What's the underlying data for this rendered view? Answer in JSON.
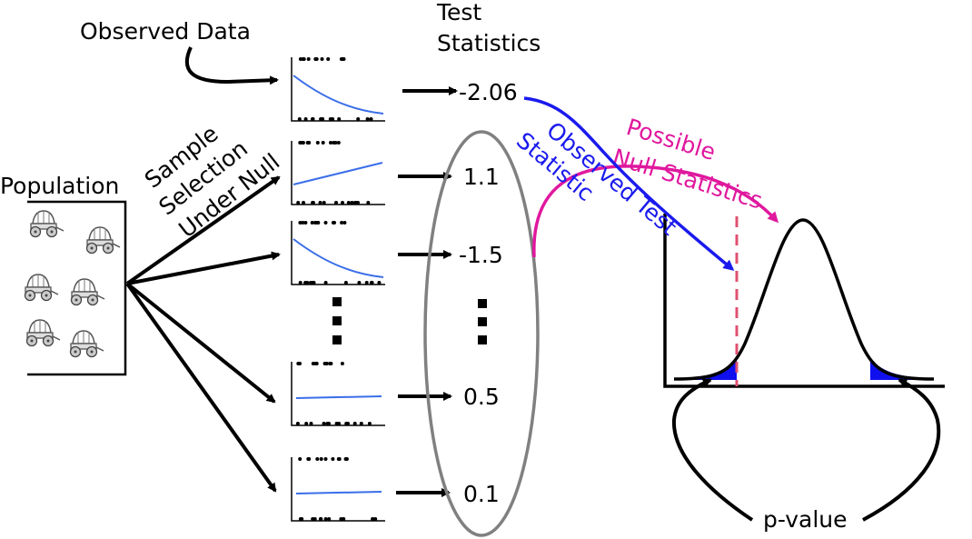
{
  "labels": {
    "observed_data": "Observed Data",
    "test_statistics_line1": "Test",
    "test_statistics_line2": "Statistics",
    "population": "Population",
    "sample_selection_line1": "Sample",
    "sample_selection_line2": "Selection",
    "sample_selection_line3": "Under Null",
    "observed_test_statistic_line1": "Observed Test",
    "observed_test_statistic_line2": "Statistic",
    "possible_null_statistics_line1": "Possible",
    "possible_null_statistics_line2": "Null Statistics",
    "p_value": "p-value"
  },
  "statistics": [
    {
      "value": "-2.06",
      "trend": "down",
      "observed": true
    },
    {
      "value": "1.1",
      "trend": "up",
      "observed": false
    },
    {
      "value": "-1.5",
      "trend": "down",
      "observed": false
    },
    {
      "value": "0.5",
      "trend": "flat",
      "observed": false
    },
    {
      "value": "0.1",
      "trend": "flat",
      "observed": false
    }
  ],
  "colors": {
    "observed": "#1a1aee",
    "null_stats": "#e0189e",
    "trend_line": "#3a6ee8",
    "cutoff_line": "#e05070",
    "tail_fill": "#1010ee",
    "ellipse": "#808080"
  },
  "icons": [
    "wagon-icon",
    "wagon-icon",
    "wagon-icon",
    "wagon-icon",
    "wagon-icon",
    "wagon-icon"
  ]
}
